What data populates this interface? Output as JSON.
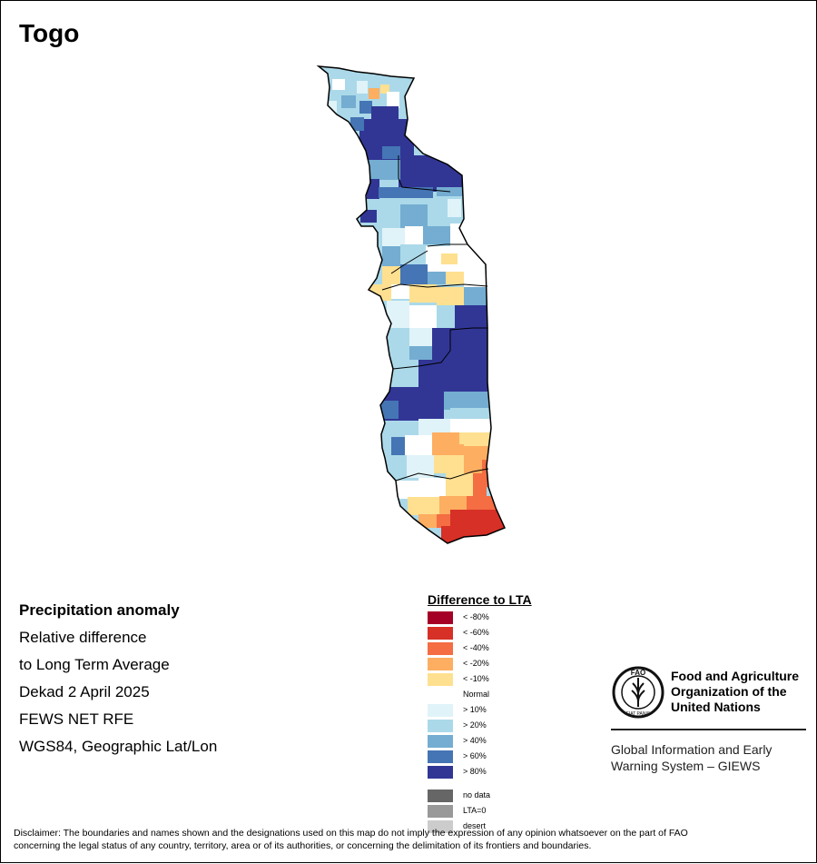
{
  "title": "Togo",
  "info": {
    "line1": "Precipitation anomaly",
    "line2": "Relative difference",
    "line3": "to Long Term Average",
    "line4": "Dekad 2 April 2025",
    "line5": "FEWS NET RFE",
    "line6": "WGS84, Geographic Lat/Lon"
  },
  "legend": {
    "title": "Difference to LTA",
    "items": [
      {
        "label": "< -80%",
        "color": "#a50026"
      },
      {
        "label": "< -60%",
        "color": "#d73027"
      },
      {
        "label": "< -40%",
        "color": "#f46d43"
      },
      {
        "label": "< -20%",
        "color": "#fdae61"
      },
      {
        "label": "< -10%",
        "color": "#fee090"
      },
      {
        "label": "Normal",
        "color": "#ffffff"
      },
      {
        "label": "> 10%",
        "color": "#e0f3f8"
      },
      {
        "label": "> 20%",
        "color": "#abd9e9"
      },
      {
        "label": "> 40%",
        "color": "#74add1"
      },
      {
        "label": "> 60%",
        "color": "#4575b4"
      },
      {
        "label": "> 80%",
        "color": "#313695"
      }
    ],
    "extras": [
      {
        "label": "no data",
        "color": "#666666"
      },
      {
        "label": "LTA=0",
        "color": "#999999"
      },
      {
        "label": "desert",
        "color": "#cccccc"
      }
    ]
  },
  "org": {
    "logo_text": "FAO",
    "logo_motto": "FIAT PANIS",
    "name_line1": "Food and Agriculture",
    "name_line2": "Organization of the",
    "name_line3": "United Nations",
    "sub_line1": "Global Information and Early",
    "sub_line2": "Warning System – GIEWS"
  },
  "disclaimer_line1": "Disclaimer: The boundaries and names shown and the designations used on this map do not imply the expression of any opinion whatsoever on the part of FAO",
  "disclaimer_line2": "concerning the legal status of any country, territory, area or of its authorities, or concerning the delimitation of its frontiers and boundaries."
}
